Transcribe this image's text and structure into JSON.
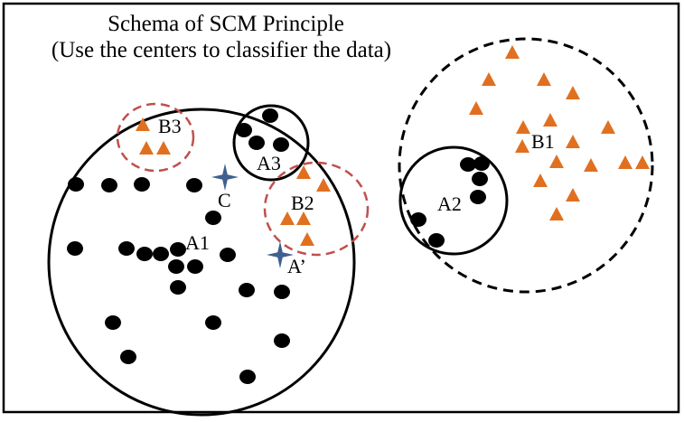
{
  "title_line1": "Schema of SCM Principle",
  "title_line2": "(Use the centers to classifier the data)",
  "colors": {
    "dot": "#000000",
    "triangle": "#e07020",
    "star": "#3f5f8f",
    "dashed_red": "#c0504d",
    "frame": "#000000"
  },
  "labels": {
    "A1": "A1",
    "A2": "A2",
    "A3": "A3",
    "B1": "B1",
    "B2": "B2",
    "B3": "B3",
    "C": "C",
    "A_prime": "A’"
  },
  "icons": {
    "black_dot": "filled-ellipse",
    "orange_marker": "filled-triangle",
    "center_marker": "four-point-star"
  }
}
